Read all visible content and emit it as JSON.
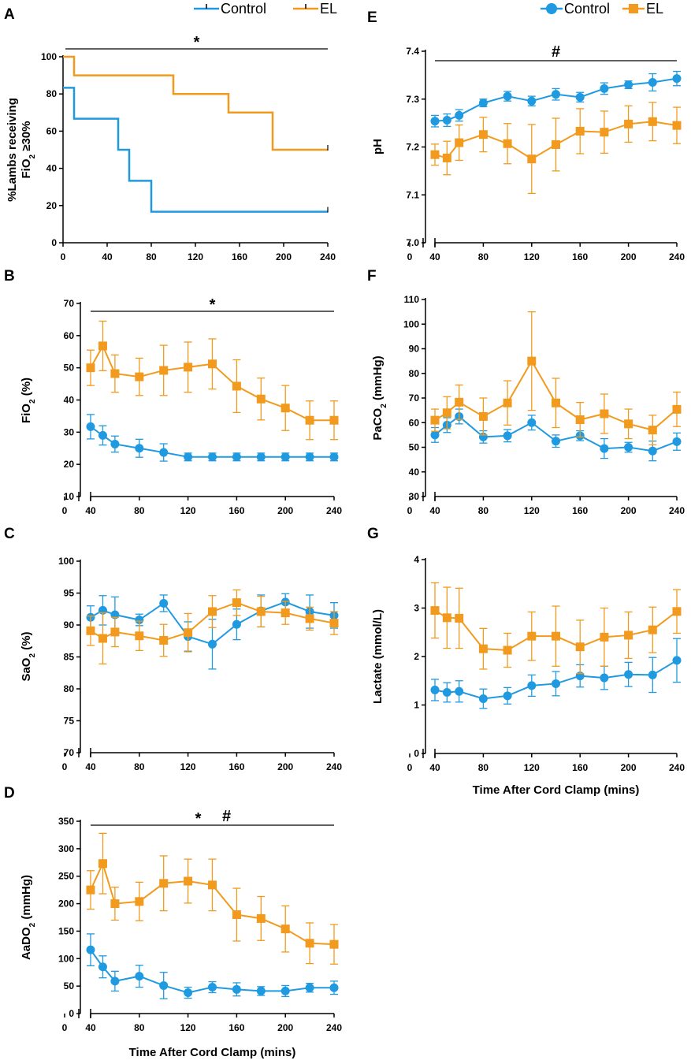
{
  "colors": {
    "control": "#1f9ae0",
    "el": "#f29a1d"
  },
  "legend_left": {
    "items": [
      "Control",
      "EL"
    ]
  },
  "legend_right": {
    "items": [
      "Control",
      "EL"
    ]
  },
  "shared": {
    "xlabel": "Time After Cord Clamp (mins)"
  },
  "chart_data": [
    {
      "id": "A",
      "type": "line",
      "step": true,
      "ylabel": [
        "%Lambs receiving",
        "FiO",
        "2",
        " ≥30%"
      ],
      "xlim": [
        0,
        240
      ],
      "ylim": [
        0,
        100
      ],
      "xticks": [
        0,
        40,
        80,
        120,
        160,
        200,
        240
      ],
      "yticks": [
        0,
        20,
        40,
        60,
        80,
        100
      ],
      "significance": "*",
      "sig_range": [
        0,
        240
      ],
      "series": [
        {
          "name": "Control",
          "steps": [
            [
              0,
              83.3
            ],
            [
              10,
              66.7
            ],
            [
              50,
              50
            ],
            [
              60,
              33.3
            ],
            [
              80,
              16.7
            ],
            [
              240,
              16.7
            ]
          ]
        },
        {
          "name": "EL",
          "steps": [
            [
              0,
              100
            ],
            [
              10,
              90
            ],
            [
              100,
              80
            ],
            [
              150,
              70
            ],
            [
              190,
              50
            ],
            [
              240,
              50
            ]
          ]
        }
      ]
    },
    {
      "id": "B",
      "type": "line",
      "ylabel": [
        "FiO",
        "2",
        " (%)"
      ],
      "x": [
        40,
        50,
        60,
        80,
        100,
        120,
        140,
        160,
        180,
        200,
        220,
        240
      ],
      "xticks": [
        0,
        40,
        80,
        120,
        160,
        200,
        240
      ],
      "yticks": [
        10,
        20,
        30,
        40,
        50,
        60,
        70
      ],
      "ylim": [
        10,
        70
      ],
      "significance": "*",
      "sig_range": [
        40,
        240
      ],
      "series": [
        {
          "name": "Control",
          "values": [
            31.7,
            29,
            26.3,
            25,
            23.7,
            22.3,
            22.3,
            22.3,
            22.3,
            22.3,
            22.3,
            22.3
          ],
          "err": [
            3.8,
            3.0,
            2.5,
            2.8,
            2.7,
            1.2,
            1.2,
            1.2,
            1.2,
            1.2,
            1.2,
            1.2
          ]
        },
        {
          "name": "EL",
          "values": [
            50,
            56.8,
            48.2,
            47.2,
            49.2,
            50.2,
            51.2,
            44.3,
            40.3,
            37.5,
            33.7,
            33.7
          ],
          "err": [
            5.5,
            7.7,
            5.8,
            5.8,
            7.8,
            7.8,
            7.8,
            8.2,
            6.5,
            7.0,
            6.0,
            6.0
          ]
        }
      ]
    },
    {
      "id": "C",
      "type": "line",
      "ylabel": [
        "SaO",
        "2",
        " (%)"
      ],
      "x": [
        40,
        50,
        60,
        80,
        100,
        120,
        140,
        160,
        180,
        200,
        220,
        240
      ],
      "xticks": [
        0,
        40,
        80,
        120,
        160,
        200,
        240
      ],
      "yticks": [
        70,
        75,
        80,
        85,
        90,
        95,
        100
      ],
      "ylim": [
        70,
        100
      ],
      "series": [
        {
          "name": "Control",
          "values": [
            91.2,
            92.3,
            91.6,
            90.8,
            93.4,
            88.2,
            87,
            90.1,
            92.2,
            93.6,
            92.1,
            91.5
          ],
          "err": [
            1.8,
            2.3,
            2.8,
            0.9,
            1.3,
            2.3,
            3.9,
            2.4,
            2.5,
            1.3,
            2.6,
            2.0
          ]
        },
        {
          "name": "EL",
          "values": [
            89.1,
            87.9,
            88.9,
            88.3,
            87.6,
            88.8,
            92.1,
            93.5,
            92.1,
            91.9,
            91,
            90.3
          ],
          "err": [
            2.3,
            4.0,
            2.3,
            2.3,
            2.5,
            3.0,
            2.5,
            2.0,
            2.4,
            1.8,
            1.8,
            1.8
          ]
        }
      ]
    },
    {
      "id": "D",
      "type": "line",
      "ylabel": [
        "AaDO",
        "2",
        " (mmHg)"
      ],
      "xlabel": "Time After Cord Clamp (mins)",
      "x": [
        40,
        50,
        60,
        80,
        100,
        120,
        140,
        160,
        180,
        200,
        220,
        240
      ],
      "xticks": [
        0,
        40,
        80,
        120,
        160,
        200,
        240
      ],
      "yticks": [
        0,
        50,
        100,
        150,
        200,
        250,
        300,
        350
      ],
      "ylim": [
        0,
        350
      ],
      "significance": "*",
      "significance2": "#",
      "sig_range": [
        40,
        240
      ],
      "series": [
        {
          "name": "Control",
          "values": [
            116,
            85,
            59,
            68,
            51,
            38,
            48,
            44,
            41,
            41,
            47,
            47
          ],
          "err": [
            29,
            20,
            18,
            20,
            24,
            10,
            10,
            12,
            8,
            10,
            8,
            12
          ]
        },
        {
          "name": "EL",
          "values": [
            225,
            273,
            200,
            204,
            237,
            241,
            234,
            180,
            173,
            154,
            128,
            126
          ],
          "err": [
            35,
            55,
            30,
            35,
            50,
            40,
            47,
            48,
            40,
            42,
            37,
            36
          ]
        }
      ]
    },
    {
      "id": "E",
      "type": "line",
      "ylabel": [
        "pH"
      ],
      "x": [
        40,
        50,
        60,
        80,
        100,
        120,
        140,
        160,
        180,
        200,
        220,
        240
      ],
      "xticks": [
        0,
        40,
        80,
        120,
        160,
        200,
        240
      ],
      "yticks": [
        "7.0",
        "7.1",
        "7.2",
        "7.3",
        "7.4"
      ],
      "ylim": [
        7.0,
        7.4
      ],
      "significance": "#",
      "sig_range": [
        40,
        240
      ],
      "series": [
        {
          "name": "Control",
          "values": [
            7.254,
            7.256,
            7.266,
            7.292,
            7.306,
            7.296,
            7.31,
            7.304,
            7.322,
            7.33,
            7.335,
            7.343
          ],
          "err": [
            0.012,
            0.013,
            0.012,
            0.008,
            0.01,
            0.01,
            0.012,
            0.01,
            0.012,
            0.008,
            0.018,
            0.015
          ]
        },
        {
          "name": "EL",
          "values": [
            7.184,
            7.177,
            7.209,
            7.226,
            7.207,
            7.175,
            7.205,
            7.233,
            7.231,
            7.248,
            7.253,
            7.245
          ],
          "err": [
            0.022,
            0.035,
            0.037,
            0.036,
            0.042,
            0.072,
            0.055,
            0.047,
            0.044,
            0.038,
            0.04,
            0.038
          ]
        }
      ]
    },
    {
      "id": "F",
      "type": "line",
      "ylabel": [
        "PaCO",
        "2",
        " (mmHg)"
      ],
      "x": [
        40,
        50,
        60,
        80,
        100,
        120,
        140,
        160,
        180,
        200,
        220,
        240
      ],
      "xticks": [
        0,
        40,
        80,
        120,
        160,
        200,
        240
      ],
      "yticks": [
        30,
        40,
        50,
        60,
        70,
        80,
        90,
        100,
        110
      ],
      "ylim": [
        30,
        110
      ],
      "series": [
        {
          "name": "Control",
          "values": [
            55,
            59,
            62.5,
            54.2,
            54.7,
            60,
            52.5,
            54.7,
            49.5,
            50,
            48.5,
            52.3
          ],
          "err": [
            3,
            3,
            3,
            2.5,
            2.5,
            3,
            2.5,
            2,
            4,
            2,
            4,
            3.5
          ]
        },
        {
          "name": "EL",
          "values": [
            61,
            64,
            68.3,
            62.5,
            68,
            85,
            68,
            61.2,
            63.6,
            59.5,
            57,
            65.4
          ],
          "err": [
            4.5,
            6.5,
            7,
            7.5,
            9,
            20,
            10,
            7,
            8,
            6,
            6,
            7
          ]
        }
      ]
    },
    {
      "id": "G",
      "type": "line",
      "ylabel": [
        "Lactate (mmol/L)"
      ],
      "xlabel": "Time After Cord Clamp (mins)",
      "x": [
        40,
        50,
        60,
        80,
        100,
        120,
        140,
        160,
        180,
        200,
        220,
        240
      ],
      "xticks": [
        0,
        40,
        80,
        120,
        160,
        200,
        240
      ],
      "yticks": [
        0,
        1,
        2,
        3,
        4
      ],
      "ylim": [
        0,
        4
      ],
      "series": [
        {
          "name": "Control",
          "values": [
            1.31,
            1.26,
            1.28,
            1.13,
            1.19,
            1.4,
            1.44,
            1.6,
            1.56,
            1.63,
            1.62,
            1.92
          ],
          "err": [
            0.22,
            0.2,
            0.22,
            0.2,
            0.17,
            0.22,
            0.25,
            0.23,
            0.24,
            0.25,
            0.36,
            0.45
          ]
        },
        {
          "name": "EL",
          "values": [
            2.95,
            2.8,
            2.79,
            2.16,
            2.13,
            2.42,
            2.42,
            2.2,
            2.4,
            2.44,
            2.55,
            2.93
          ],
          "err": [
            0.57,
            0.63,
            0.62,
            0.42,
            0.35,
            0.5,
            0.62,
            0.55,
            0.6,
            0.48,
            0.47,
            0.45
          ]
        }
      ]
    }
  ]
}
